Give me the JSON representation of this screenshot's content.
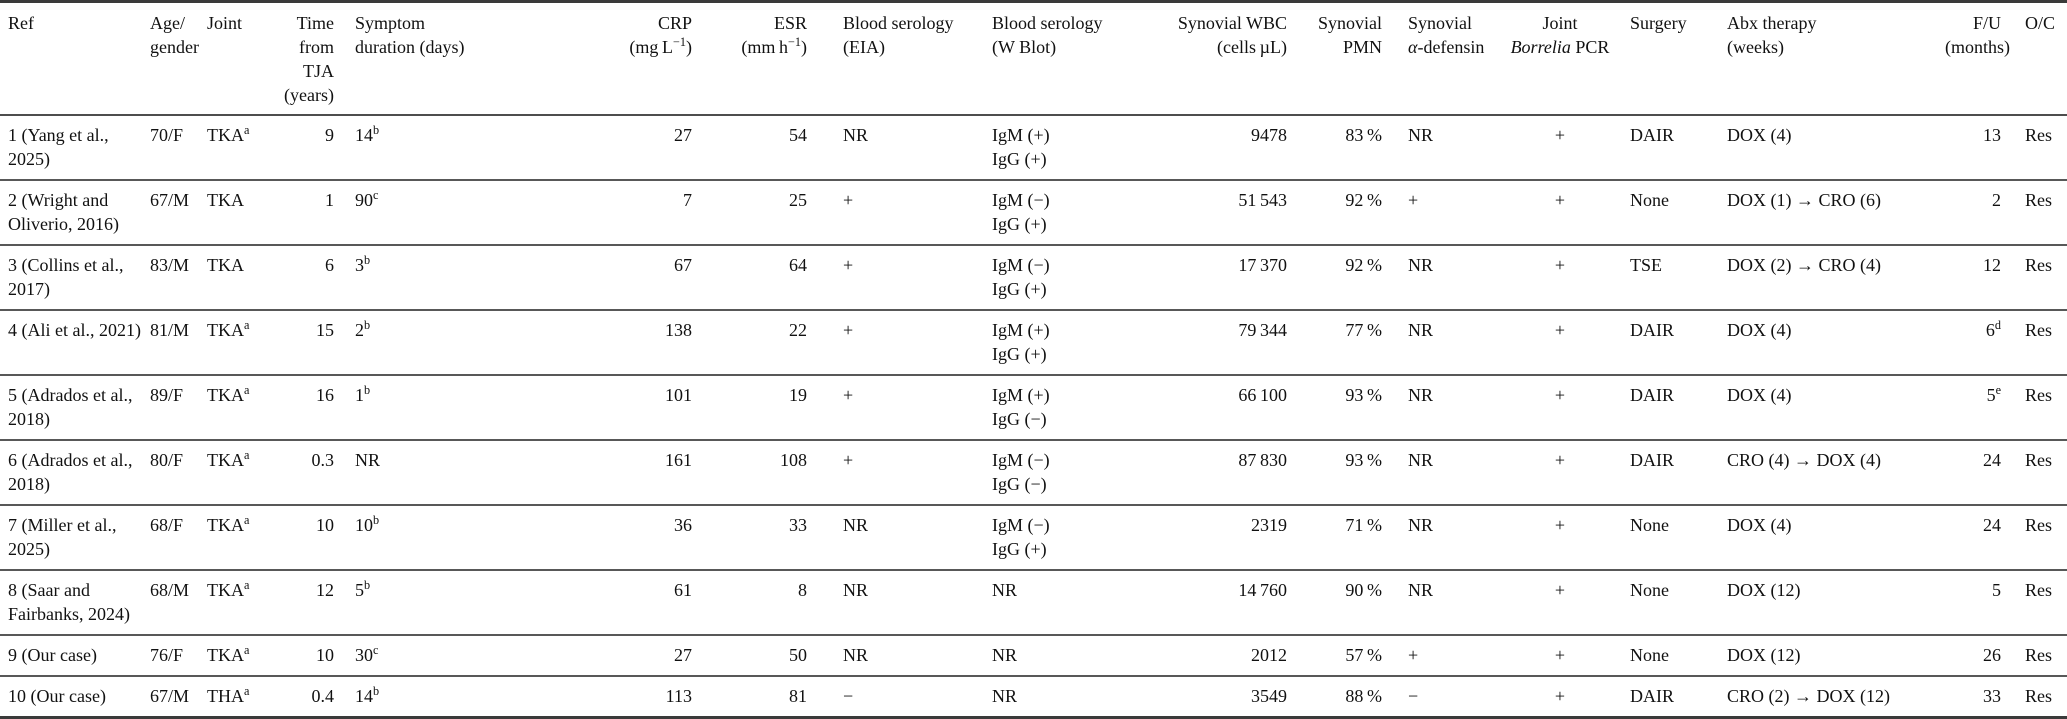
{
  "table": {
    "columns": [
      {
        "id": "ref",
        "label": "Ref"
      },
      {
        "id": "age_gender",
        "label": "Age/\ngender"
      },
      {
        "id": "joint",
        "label": "Joint"
      },
      {
        "id": "time_from_tja",
        "label": "Time from\nTJA (years)"
      },
      {
        "id": "symptom_duration",
        "label": "Symptom\nduration (days)"
      },
      {
        "id": "crp",
        "label": "CRP\n(mg L^−1^)"
      },
      {
        "id": "esr",
        "label": "ESR\n(mm h^−1^)"
      },
      {
        "id": "blood_serology_eia",
        "label": "Blood serology\n(EIA)"
      },
      {
        "id": "blood_serology_wblot",
        "label": "Blood serology\n(W Blot)"
      },
      {
        "id": "synovial_wbc",
        "label": "Synovial WBC\n(cells µL)"
      },
      {
        "id": "synovial_pmn",
        "label": "Synovial\nPMN"
      },
      {
        "id": "synovial_alpha_defensin",
        "label": "Synovial\n*α*-defensin"
      },
      {
        "id": "joint_borrelia_pcr",
        "label": "Joint\n*Borrelia* PCR"
      },
      {
        "id": "surgery",
        "label": "Surgery"
      },
      {
        "id": "abx_therapy",
        "label": "Abx therapy\n(weeks)"
      },
      {
        "id": "fu",
        "label": "F/U\n(months)"
      },
      {
        "id": "oc",
        "label": "O/C"
      }
    ],
    "rows": [
      {
        "cells": [
          "1 (Yang et al.,\n2025)",
          "70/F",
          "TKA^a^",
          "9",
          "14^b^",
          "27",
          "54",
          "NR",
          "IgM (+)\nIgG (+)",
          "9478",
          "83 %",
          "NR",
          "+",
          "DAIR",
          "DOX (4)",
          "13",
          "Res"
        ]
      },
      {
        "cells": [
          "2 (Wright and\nOliverio, 2016)",
          "67/M",
          "TKA",
          "1",
          "90^c^",
          "7",
          "25",
          "+",
          "IgM (−)\nIgG (+)",
          "51 543",
          "92 %",
          "+",
          "+",
          "None",
          "DOX (1) → CRO (6)",
          "2",
          "Res"
        ]
      },
      {
        "cells": [
          "3 (Collins et al.,\n2017)",
          "83/M",
          "TKA",
          "6",
          "3^b^",
          "67",
          "64",
          "+",
          "IgM (−)\nIgG (+)",
          "17 370",
          "92 %",
          "NR",
          "+",
          "TSE",
          "DOX (2) → CRO (4)",
          "12",
          "Res"
        ]
      },
      {
        "cells": [
          "4 (Ali et al., 2021)",
          "81/M",
          "TKA^a^",
          "15",
          "2^b^",
          "138",
          "22",
          "+",
          "IgM (+)\nIgG (+)",
          "79 344",
          "77 %",
          "NR",
          "+",
          "DAIR",
          "DOX (4)",
          "6^d^",
          "Res"
        ]
      },
      {
        "cells": [
          "5 (Adrados et al.,\n2018)",
          "89/F",
          "TKA^a^",
          "16",
          "1^b^",
          "101",
          "19",
          "+",
          "IgM (+)\nIgG (−)",
          "66 100",
          "93 %",
          "NR",
          "+",
          "DAIR",
          "DOX (4)",
          "5^e^",
          "Res"
        ]
      },
      {
        "cells": [
          "6 (Adrados et al.,\n2018)",
          "80/F",
          "TKA^a^",
          "0.3",
          "NR",
          "161",
          "108",
          "+",
          "IgM (−)\nIgG (−)",
          "87 830",
          "93 %",
          "NR",
          "+",
          "DAIR",
          "CRO (4) → DOX (4)",
          "24",
          "Res"
        ]
      },
      {
        "cells": [
          "7 (Miller et al.,\n2025)",
          "68/F",
          "TKA^a^",
          "10",
          "10^b^",
          "36",
          "33",
          "NR",
          "IgM (−)\nIgG (+)",
          "2319",
          "71 %",
          "NR",
          "+",
          "None",
          "DOX (4)",
          "24",
          "Res"
        ]
      },
      {
        "cells": [
          "8 (Saar and\nFairbanks, 2024)",
          "68/M",
          "TKA^a^",
          "12",
          "5^b^",
          "61",
          "8",
          "NR",
          "NR",
          "14 760",
          "90 %",
          "NR",
          "+",
          "None",
          "DOX (12)",
          "5",
          "Res"
        ]
      },
      {
        "cells": [
          "9 (Our case)",
          "76/F",
          "TKA^a^",
          "10",
          "30^c^",
          "27",
          "50",
          "NR",
          "NR",
          "2012",
          "57 %",
          "+",
          "+",
          "None",
          "DOX (12)",
          "26",
          "Res"
        ]
      },
      {
        "cells": [
          "10 (Our case)",
          "67/M",
          "THA^a^",
          "0.4",
          "14^b^",
          "113",
          "81",
          "−",
          "NR",
          "3549",
          "88 %",
          "−",
          "+",
          "DAIR",
          "CRO (2) → DOX (12)",
          "33",
          "Res"
        ]
      }
    ]
  }
}
